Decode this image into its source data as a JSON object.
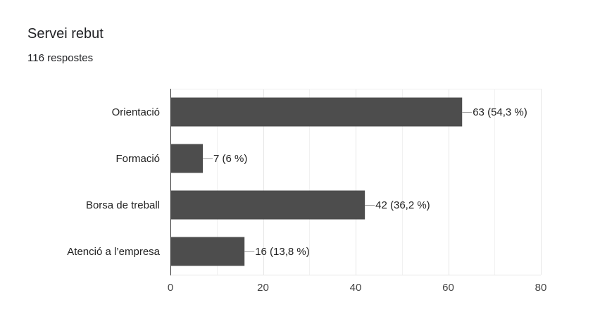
{
  "card": {
    "title": "Servei rebut",
    "subtitle": "116 respostes"
  },
  "chart_data": {
    "type": "bar",
    "orientation": "horizontal",
    "categories": [
      "Orientació",
      "Formació",
      "Borsa de treball",
      "Atenció a l’empresa"
    ],
    "values": [
      63,
      7,
      42,
      16
    ],
    "value_labels": [
      "63 (54,3 %)",
      "7 (6 %)",
      "42 (36,2 %)",
      "16 (13,8 %)"
    ],
    "xlim": [
      0,
      80
    ],
    "xticks": [
      0,
      20,
      40,
      60,
      80
    ],
    "xtick_labels": [
      "0",
      "20",
      "40",
      "60",
      "80"
    ],
    "grid": true,
    "bar_color": "#4d4d4d"
  }
}
